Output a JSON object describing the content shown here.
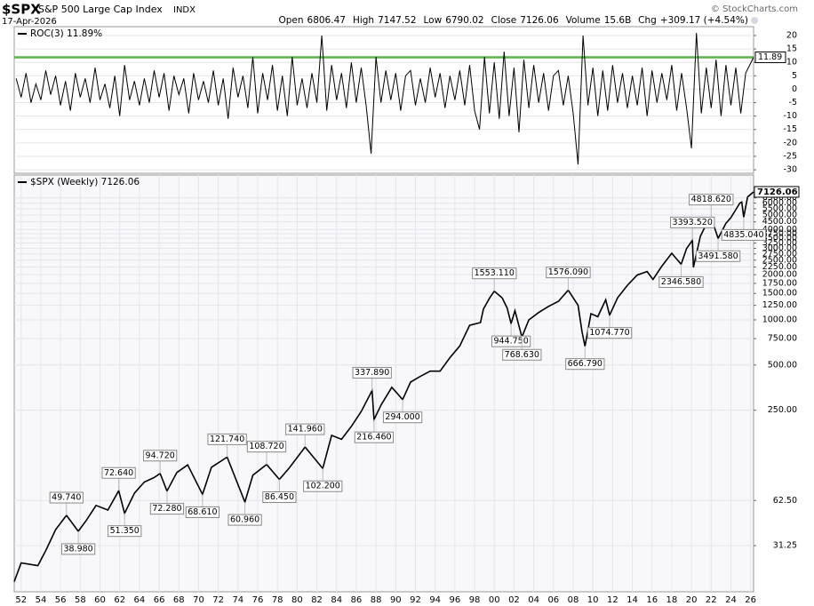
{
  "header": {
    "symbol": "$SPX",
    "name": "S&P 500 Large Cap Index",
    "exchange": "INDX",
    "date": "17-Apr-2026",
    "copyright": "© StockCharts.com",
    "quote": [
      {
        "label": "Open",
        "value": "6806.47"
      },
      {
        "label": "High",
        "value": "7147.52"
      },
      {
        "label": "Low",
        "value": "6790.02"
      },
      {
        "label": "Close",
        "value": "7126.06"
      },
      {
        "label": "Volume",
        "value": "15.6B"
      },
      {
        "label": "Chg",
        "value": "+309.17 (+4.54%)"
      }
    ]
  },
  "chart_data": [
    {
      "type": "line",
      "xlim": [
        1951.3,
        2026.3
      ],
      "ylim": [
        -31.3,
        23.3
      ],
      "yticks": [
        20,
        15,
        10,
        5,
        0,
        -5,
        -10,
        -15,
        -20,
        -25,
        -30
      ],
      "grid": true,
      "reference_line": {
        "value": 11.89,
        "label": "11.89",
        "color": "#5cb346"
      },
      "x": [
        1951.5,
        1952,
        1952.5,
        1953,
        1953.5,
        1954,
        1954.5,
        1955,
        1955.5,
        1956,
        1956.5,
        1957,
        1957.5,
        1958,
        1958.5,
        1959,
        1959.5,
        1960,
        1960.5,
        1961,
        1961.5,
        1962,
        1962.5,
        1963,
        1963.5,
        1964,
        1964.5,
        1965,
        1965.5,
        1966,
        1966.5,
        1967,
        1967.5,
        1968,
        1968.5,
        1969,
        1969.5,
        1970,
        1970.5,
        1971,
        1971.5,
        1972,
        1972.5,
        1973,
        1973.5,
        1974,
        1974.5,
        1975,
        1975.5,
        1976,
        1976.5,
        1977,
        1977.5,
        1978,
        1978.5,
        1979,
        1979.5,
        1980,
        1980.5,
        1981,
        1981.5,
        1982,
        1982.5,
        1983,
        1983.5,
        1984,
        1984.5,
        1985,
        1985.5,
        1986,
        1986.5,
        1987,
        1987.5,
        1988,
        1988.5,
        1989,
        1989.5,
        1990,
        1990.5,
        1991,
        1991.5,
        1992,
        1992.5,
        1993,
        1993.5,
        1994,
        1994.5,
        1995,
        1995.5,
        1996,
        1996.5,
        1997,
        1997.5,
        1998,
        1998.5,
        1999,
        1999.5,
        2000,
        2000.5,
        2001,
        2001.5,
        2002,
        2002.5,
        2003,
        2003.5,
        2004,
        2004.5,
        2005,
        2005.5,
        2006,
        2006.5,
        2007,
        2007.5,
        2008,
        2008.5,
        2009,
        2009.5,
        2010,
        2010.5,
        2011,
        2011.5,
        2012,
        2012.5,
        2013,
        2013.5,
        2014,
        2014.5,
        2015,
        2015.5,
        2016,
        2016.5,
        2017,
        2017.5,
        2018,
        2018.5,
        2019,
        2019.5,
        2020,
        2020.5,
        2021,
        2021.5,
        2022,
        2022.5,
        2023,
        2023.5,
        2024,
        2024.5,
        2025,
        2025.5,
        2026.3
      ],
      "series": [
        {
          "name": "ROC(3) 11.89%",
          "color": "#000000",
          "values": [
            4,
            -3,
            6,
            -5,
            2,
            -4,
            7,
            -2,
            5,
            -6,
            3,
            -8,
            6,
            -3,
            4,
            -5,
            8,
            -4,
            2,
            -7,
            5,
            -10,
            9,
            -4,
            3,
            -6,
            4,
            -5,
            7,
            -3,
            6,
            -8,
            5,
            -2,
            4,
            -9,
            6,
            -4,
            3,
            -5,
            7,
            -6,
            4,
            -11,
            8,
            -3,
            5,
            -7,
            12,
            -9,
            6,
            -4,
            9,
            -8,
            5,
            -10,
            12,
            -6,
            4,
            -7,
            6,
            -5,
            20,
            -8,
            9,
            -4,
            6,
            -7,
            10,
            -5,
            8,
            -6,
            -24,
            12,
            -5,
            7,
            -4,
            6,
            -8,
            5,
            7,
            -6,
            4,
            -5,
            8,
            -3,
            6,
            -7,
            5,
            -4,
            7,
            -6,
            9,
            -8,
            -15,
            12,
            -9,
            10,
            -11,
            14,
            -10,
            8,
            -16,
            11,
            -7,
            9,
            -5,
            6,
            -8,
            5,
            7,
            -6,
            5,
            -9,
            -28,
            20,
            -6,
            8,
            -10,
            7,
            -8,
            9,
            -5,
            6,
            -7,
            5,
            -6,
            8,
            -10,
            7,
            -5,
            6,
            -4,
            9,
            -8,
            6,
            -7,
            -22,
            21,
            -9,
            8,
            -7,
            11,
            -10,
            9,
            -6,
            8,
            -9,
            6,
            11.89
          ]
        }
      ]
    },
    {
      "type": "line",
      "log_y": true,
      "xlim": [
        1951.3,
        2026.3
      ],
      "ylim": [
        15.4,
        9230
      ],
      "grid": true,
      "xticks": [
        {
          "value": 1952,
          "label": "52"
        },
        {
          "value": 1954,
          "label": "54"
        },
        {
          "value": 1956,
          "label": "56"
        },
        {
          "value": 1958,
          "label": "58"
        },
        {
          "value": 1960,
          "label": "60"
        },
        {
          "value": 1962,
          "label": "62"
        },
        {
          "value": 1964,
          "label": "64"
        },
        {
          "value": 1966,
          "label": "66"
        },
        {
          "value": 1968,
          "label": "68"
        },
        {
          "value": 1970,
          "label": "70"
        },
        {
          "value": 1972,
          "label": "72"
        },
        {
          "value": 1974,
          "label": "74"
        },
        {
          "value": 1976,
          "label": "76"
        },
        {
          "value": 1978,
          "label": "78"
        },
        {
          "value": 1980,
          "label": "80"
        },
        {
          "value": 1982,
          "label": "82"
        },
        {
          "value": 1984,
          "label": "84"
        },
        {
          "value": 1986,
          "label": "86"
        },
        {
          "value": 1988,
          "label": "88"
        },
        {
          "value": 1990,
          "label": "90"
        },
        {
          "value": 1992,
          "label": "92"
        },
        {
          "value": 1994,
          "label": "94"
        },
        {
          "value": 1996,
          "label": "96"
        },
        {
          "value": 1998,
          "label": "98"
        },
        {
          "value": 2000,
          "label": "00"
        },
        {
          "value": 2002,
          "label": "02"
        },
        {
          "value": 2004,
          "label": "04"
        },
        {
          "value": 2006,
          "label": "06"
        },
        {
          "value": 2008,
          "label": "08"
        },
        {
          "value": 2010,
          "label": "10"
        },
        {
          "value": 2012,
          "label": "12"
        },
        {
          "value": 2014,
          "label": "14"
        },
        {
          "value": 2016,
          "label": "16"
        },
        {
          "value": 2018,
          "label": "18"
        },
        {
          "value": 2020,
          "label": "20"
        },
        {
          "value": 2022,
          "label": "22"
        },
        {
          "value": 2024,
          "label": "24"
        },
        {
          "value": 2026,
          "label": "26"
        }
      ],
      "yticks": [
        {
          "value": 6500,
          "label": "6500.00"
        },
        {
          "value": 6000,
          "label": "6000.00"
        },
        {
          "value": 5500,
          "label": "5500.00"
        },
        {
          "value": 5000,
          "label": "5000.00"
        },
        {
          "value": 4500,
          "label": "4500.00"
        },
        {
          "value": 4000,
          "label": "4000.00"
        },
        {
          "value": 3750,
          "label": "3750.00"
        },
        {
          "value": 3500,
          "label": "3500.00"
        },
        {
          "value": 3250,
          "label": "3250.00"
        },
        {
          "value": 3000,
          "label": "3000.00"
        },
        {
          "value": 2750,
          "label": "2750.00"
        },
        {
          "value": 2500,
          "label": "2500.00"
        },
        {
          "value": 2250,
          "label": "2250.00"
        },
        {
          "value": 2000,
          "label": "2000.00"
        },
        {
          "value": 1750,
          "label": "1750.00"
        },
        {
          "value": 1500,
          "label": "1500.00"
        },
        {
          "value": 1250,
          "label": "1250.00"
        },
        {
          "value": 1000,
          "label": "1000.00"
        },
        {
          "value": 750,
          "label": "750.00"
        },
        {
          "value": 500,
          "label": "500.00"
        },
        {
          "value": 250,
          "label": "250.00"
        },
        {
          "value": 62.5,
          "label": "62.50"
        },
        31.25
      ],
      "x": [
        1951.3,
        1952,
        1953.7,
        1954.5,
        1955.5,
        1956.6,
        1957.8,
        1958.6,
        1959.6,
        1960.8,
        1961.9,
        1962.5,
        1963.5,
        1964.5,
        1965.5,
        1966.1,
        1966.8,
        1967.8,
        1968.9,
        1970.4,
        1971.3,
        1972.9,
        1974.7,
        1975.5,
        1976.9,
        1978.2,
        1979.2,
        1980.8,
        1982.6,
        1983.5,
        1984.5,
        1985.5,
        1986.5,
        1987.6,
        1987.8,
        1988.5,
        1989.6,
        1990.7,
        1991.5,
        1992.5,
        1993.5,
        1994.5,
        1995.5,
        1996.5,
        1997.5,
        1998.6,
        1998.9,
        1999.5,
        2000.0,
        2000.8,
        2001.3,
        2001.7,
        2002.1,
        2002.8,
        2003.5,
        2004.5,
        2005.5,
        2006.5,
        2007.5,
        2008.5,
        2008.9,
        2009.2,
        2009.8,
        2010.5,
        2011.3,
        2011.7,
        2012.5,
        2013.5,
        2014.5,
        2015.5,
        2016.1,
        2017,
        2018,
        2018.95,
        2019.5,
        2020.1,
        2020.2,
        2020.9,
        2021.5,
        2022.0,
        2022.7,
        2023.5,
        2024,
        2024.9,
        2025.1,
        2025.3,
        2025.7,
        2026.3
      ],
      "series": [
        {
          "name": "$SPX (Weekly) 7126.06",
          "color": "#000000",
          "values": [
            18,
            24,
            23,
            29,
            40,
            49.74,
            38.98,
            46,
            58,
            54,
            72.64,
            51.35,
            70,
            83,
            89,
            94.72,
            72.28,
            96,
            108,
            68.61,
            104,
            121.74,
            60.96,
            92,
            108.72,
            86.45,
            103,
            141.96,
            102.2,
            170,
            160,
            195,
            245,
            337.89,
            216.46,
            270,
            355,
            294,
            385,
            420,
            455,
            455,
            560,
            670,
            920,
            960,
            1180,
            1390,
            1553.11,
            1400,
            1200,
            944.75,
            1150,
            768.63,
            1000,
            1120,
            1230,
            1330,
            1576.09,
            1250,
            830,
            666.79,
            1100,
            1050,
            1360,
            1074.77,
            1400,
            1700,
            1990,
            2100,
            1860,
            2280,
            2780,
            2346.58,
            2990,
            3393.52,
            2237,
            3600,
            4350,
            4818.62,
            3491.58,
            4400,
            4800,
            6000,
            6100,
            4835.04,
            6600,
            7126.06
          ],
          "value_labels": [
            null,
            null,
            null,
            null,
            null,
            "49.740",
            "38.980",
            null,
            null,
            null,
            "72.640",
            "51.350",
            null,
            null,
            null,
            "94.720",
            "72.280",
            null,
            null,
            "68.610",
            null,
            "121.740",
            "60.960",
            null,
            "108.720",
            "86.450",
            null,
            "141.960",
            "102.200",
            null,
            null,
            null,
            null,
            "337.890",
            "216.460",
            null,
            null,
            "294.000",
            null,
            null,
            null,
            null,
            null,
            null,
            null,
            null,
            null,
            null,
            "1553.110",
            null,
            null,
            "944.750",
            null,
            "768.630",
            null,
            null,
            null,
            null,
            "1576.090",
            null,
            null,
            "666.790",
            null,
            null,
            null,
            "1074.770",
            null,
            null,
            null,
            null,
            null,
            null,
            null,
            "2346.580",
            null,
            "3393.520",
            null,
            null,
            null,
            "4818.620",
            "3491.580",
            null,
            null,
            null,
            null,
            "4835.040",
            null,
            "7126.06"
          ]
        }
      ]
    }
  ]
}
